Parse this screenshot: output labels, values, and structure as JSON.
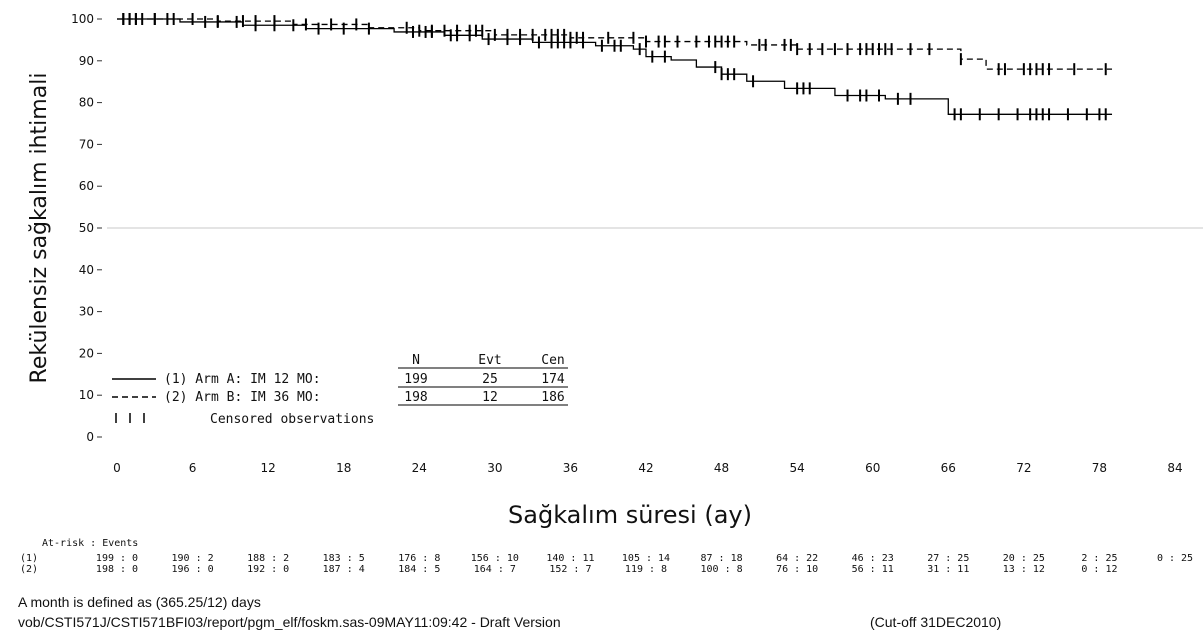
{
  "chart_data": {
    "type": "line",
    "ylabel": "Rekülensiz sağkalım ihtimali",
    "xlabel": "Sağkalım süresi (ay)",
    "xlim": [
      0,
      84
    ],
    "ylim": [
      0,
      100
    ],
    "x_ticks": [
      0,
      6,
      12,
      18,
      24,
      30,
      36,
      42,
      48,
      54,
      60,
      66,
      72,
      78,
      84
    ],
    "y_ticks": [
      0,
      10,
      20,
      30,
      40,
      50,
      60,
      70,
      80,
      90,
      100
    ],
    "reference_line_y": 50,
    "series": [
      {
        "name": "(1) Arm A: IM 12 MO:",
        "line_style": "solid",
        "steps": [
          [
            0,
            100
          ],
          [
            5,
            99.3
          ],
          [
            10,
            98.5
          ],
          [
            15,
            97.7
          ],
          [
            22,
            96.9
          ],
          [
            26,
            96.1
          ],
          [
            29,
            95.2
          ],
          [
            33,
            94.4
          ],
          [
            38,
            93.6
          ],
          [
            41,
            92.8
          ],
          [
            42,
            91.0
          ],
          [
            44,
            90.2
          ],
          [
            46,
            88.5
          ],
          [
            48,
            86.8
          ],
          [
            50,
            85.1
          ],
          [
            53,
            83.4
          ],
          [
            57,
            81.7
          ],
          [
            61,
            80.9
          ],
          [
            66,
            77.2
          ],
          [
            79,
            77.2
          ]
        ],
        "censored": [
          0.5,
          1,
          1.5,
          2,
          3,
          4.5,
          7,
          8,
          9.5,
          11,
          12.5,
          14,
          16,
          18,
          20,
          23.5,
          24.5,
          25,
          26.5,
          27,
          28,
          29.5,
          31,
          32,
          33.5,
          34.5,
          35,
          35.5,
          36,
          37,
          38.5,
          39.5,
          40,
          41.5,
          42.5,
          43.5,
          47.5,
          48,
          48.5,
          49,
          50.5,
          54,
          54.5,
          55,
          58,
          59,
          59.5,
          60.5,
          62,
          63,
          66.5,
          67,
          68.5,
          70,
          71.5,
          72.5,
          73,
          73.5,
          74,
          75.5,
          77,
          78,
          78.5
        ]
      },
      {
        "name": "(2) Arm B: IM 36 MO:",
        "line_style": "dashed",
        "steps": [
          [
            0,
            100
          ],
          [
            8,
            99.5
          ],
          [
            14,
            98.7
          ],
          [
            20,
            97.9
          ],
          [
            24,
            97.2
          ],
          [
            30,
            96.2
          ],
          [
            36,
            95.5
          ],
          [
            42,
            94.6
          ],
          [
            50,
            93.8
          ],
          [
            54,
            92.8
          ],
          [
            67,
            90.4
          ],
          [
            69,
            88.0
          ],
          [
            79,
            88.0
          ]
        ],
        "censored": [
          0.5,
          1,
          1.5,
          3,
          4,
          6,
          8,
          10,
          11,
          12.5,
          15,
          17,
          19,
          23,
          24,
          25,
          26,
          27,
          28,
          28.5,
          29,
          30,
          31,
          32,
          33,
          34,
          34.5,
          35,
          35.5,
          36,
          36.5,
          37,
          39,
          41,
          42,
          43,
          43.5,
          44.5,
          46,
          47,
          47.5,
          48,
          48.5,
          49,
          51,
          51.5,
          53,
          53.5,
          54,
          55,
          56,
          57,
          58,
          59,
          59.5,
          60,
          60.5,
          61,
          61.5,
          63,
          64.5,
          67,
          70,
          70.5,
          72,
          72.5,
          73,
          73.5,
          74,
          76,
          78.5
        ]
      }
    ],
    "legend": {
      "headers": [
        "N",
        "Evt",
        "Cen"
      ],
      "rows": [
        {
          "label": "(1) Arm A: IM 12 MO:",
          "n": "199",
          "evt": "25",
          "cen": "174"
        },
        {
          "label": "(2) Arm B: IM 36 MO:",
          "n": "198",
          "evt": "12",
          "cen": "186"
        }
      ],
      "censored_label": "Censored observations",
      "placement": "bottom-left"
    },
    "at_risk": {
      "header": "At-risk : Events",
      "rows": [
        {
          "label": "(1)",
          "values": [
            "199 : 0",
            "190 : 2",
            "188 : 2",
            "183 : 5",
            "176 : 8",
            "156 : 10",
            "140 : 11",
            "105 : 14",
            "87 : 18",
            "64 : 22",
            "46 : 23",
            "27 : 25",
            "20 : 25",
            "2 : 25",
            "0 : 25"
          ]
        },
        {
          "label": "(2)",
          "values": [
            "198 : 0",
            "196 : 0",
            "192 : 0",
            "187 : 4",
            "184 : 5",
            "164 : 7",
            "152 : 7",
            "119 : 8",
            "100 : 8",
            "76 : 10",
            "56 : 11",
            "31 : 11",
            "13 : 12",
            "0 : 12",
            ""
          ]
        }
      ]
    }
  },
  "footer": {
    "line1": "A month is defined as (365.25/12) days",
    "line2": "vob/CSTI571J/CSTI571BFI03/report/pgm_elf/foskm.sas-09MAY11:09:42 - Draft Version",
    "cutoff": "(Cut-off 31DEC2010)"
  }
}
